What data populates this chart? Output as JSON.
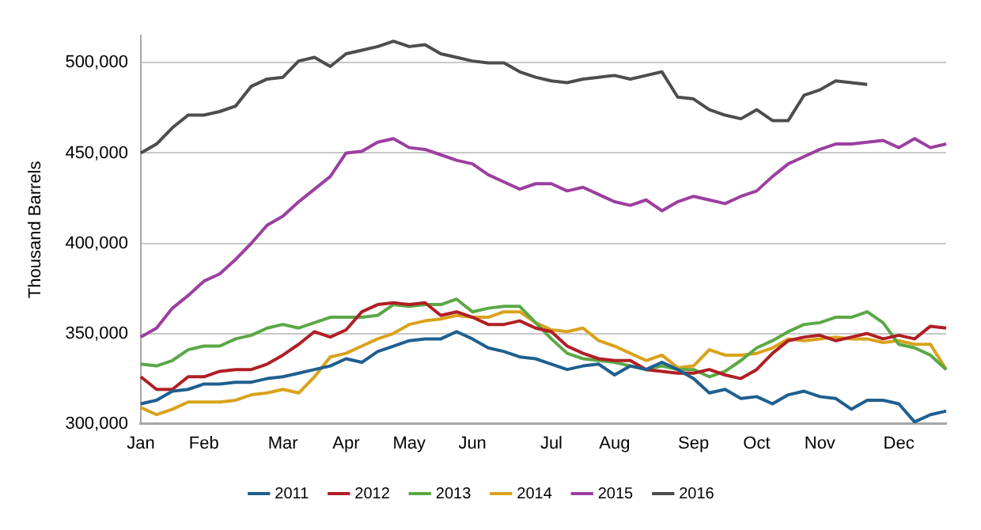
{
  "chart_data": {
    "type": "line",
    "ylabel": "Thousand Barrels",
    "categories": [
      "Jan",
      null,
      null,
      null,
      "Feb",
      null,
      null,
      null,
      null,
      "Mar",
      null,
      null,
      null,
      "Apr",
      null,
      null,
      null,
      "May",
      null,
      null,
      null,
      "Jun",
      null,
      null,
      null,
      null,
      "Jul",
      null,
      null,
      null,
      "Aug",
      null,
      null,
      null,
      null,
      "Sep",
      null,
      null,
      null,
      "Oct",
      null,
      null,
      null,
      "Nov",
      null,
      null,
      null,
      null,
      "Dec",
      null,
      null,
      null
    ],
    "ylim": [
      300000,
      515000
    ],
    "yticks": [
      {
        "value": 300000,
        "label": "300,000"
      },
      {
        "value": 350000,
        "label": "350,000"
      },
      {
        "value": 400000,
        "label": "400,000"
      },
      {
        "value": 450000,
        "label": "450,000"
      },
      {
        "value": 500000,
        "label": "500,000"
      }
    ],
    "grid": "y",
    "legend": "bottom",
    "marker": "none",
    "line_style": "solid",
    "series": [
      {
        "name": "2011",
        "color": "#1f5f8f",
        "values": [
          311000,
          313000,
          318000,
          319000,
          322000,
          322000,
          323000,
          323000,
          325000,
          326000,
          328000,
          330000,
          332000,
          336000,
          334000,
          340000,
          343000,
          346000,
          347000,
          347000,
          351000,
          347000,
          342000,
          340000,
          337000,
          336000,
          333000,
          330000,
          332000,
          333000,
          327000,
          332000,
          330000,
          334000,
          330000,
          325000,
          317000,
          319000,
          314000,
          315000,
          311000,
          316000,
          318000,
          315000,
          314000,
          308000,
          313000,
          313000,
          311000,
          301000,
          305000,
          307000
        ]
      },
      {
        "name": "2012",
        "color": "#b01f24",
        "values": [
          326000,
          319000,
          319000,
          326000,
          326000,
          329000,
          330000,
          330000,
          333000,
          338000,
          344000,
          351000,
          348000,
          352000,
          362000,
          366000,
          367000,
          366000,
          367000,
          360000,
          362000,
          359000,
          355000,
          355000,
          357000,
          353000,
          351000,
          343000,
          339000,
          336000,
          335000,
          335000,
          330000,
          329000,
          328000,
          328000,
          330000,
          327000,
          325000,
          330000,
          339000,
          346000,
          348000,
          349000,
          346000,
          348000,
          350000,
          347000,
          349000,
          347000,
          354000,
          353000
        ]
      },
      {
        "name": "2013",
        "color": "#5aa846",
        "values": [
          333000,
          332000,
          335000,
          341000,
          343000,
          343000,
          347000,
          349000,
          353000,
          355000,
          353000,
          356000,
          359000,
          359000,
          359000,
          360000,
          366000,
          365000,
          366000,
          366000,
          369000,
          362000,
          364000,
          365000,
          365000,
          356000,
          347000,
          339000,
          336000,
          335000,
          334000,
          332000,
          330000,
          332000,
          330000,
          330000,
          326000,
          329000,
          335000,
          342000,
          346000,
          351000,
          355000,
          356000,
          359000,
          359000,
          362000,
          356000,
          344000,
          342000,
          338000,
          330000
        ]
      },
      {
        "name": "2014",
        "color": "#d9a21b",
        "values": [
          309000,
          305000,
          308000,
          312000,
          312000,
          312000,
          313000,
          316000,
          317000,
          319000,
          317000,
          326000,
          337000,
          339000,
          343000,
          347000,
          350000,
          355000,
          357000,
          358000,
          360000,
          359000,
          359000,
          362000,
          362000,
          356000,
          352000,
          351000,
          353000,
          346000,
          343000,
          339000,
          335000,
          338000,
          331000,
          332000,
          341000,
          338000,
          338000,
          339000,
          342000,
          347000,
          346000,
          347000,
          348000,
          347000,
          347000,
          345000,
          346000,
          344000,
          344000,
          330000
        ]
      },
      {
        "name": "2015",
        "color": "#9b3fa0",
        "values": [
          348000,
          353000,
          364000,
          371000,
          379000,
          383000,
          391000,
          400000,
          410000,
          415000,
          423000,
          430000,
          437000,
          450000,
          451000,
          456000,
          458000,
          453000,
          452000,
          449000,
          446000,
          444000,
          438000,
          434000,
          430000,
          433000,
          433000,
          429000,
          431000,
          427000,
          423000,
          421000,
          424000,
          418000,
          423000,
          426000,
          424000,
          422000,
          426000,
          429000,
          437000,
          444000,
          448000,
          452000,
          455000,
          455000,
          456000,
          457000,
          453000,
          458000,
          453000,
          455000
        ]
      },
      {
        "name": "2016",
        "color": "#4d4d4d",
        "values": [
          450000,
          455000,
          464000,
          471000,
          471000,
          473000,
          476000,
          487000,
          491000,
          492000,
          501000,
          503000,
          498000,
          505000,
          507000,
          509000,
          512000,
          509000,
          510000,
          505000,
          503000,
          501000,
          500000,
          500000,
          495000,
          492000,
          490000,
          489000,
          491000,
          492000,
          493000,
          491000,
          493000,
          495000,
          481000,
          480000,
          474000,
          471000,
          469000,
          474000,
          468000,
          468000,
          482000,
          485000,
          490000,
          489000,
          488000,
          null,
          null,
          null,
          null,
          null
        ]
      }
    ]
  }
}
